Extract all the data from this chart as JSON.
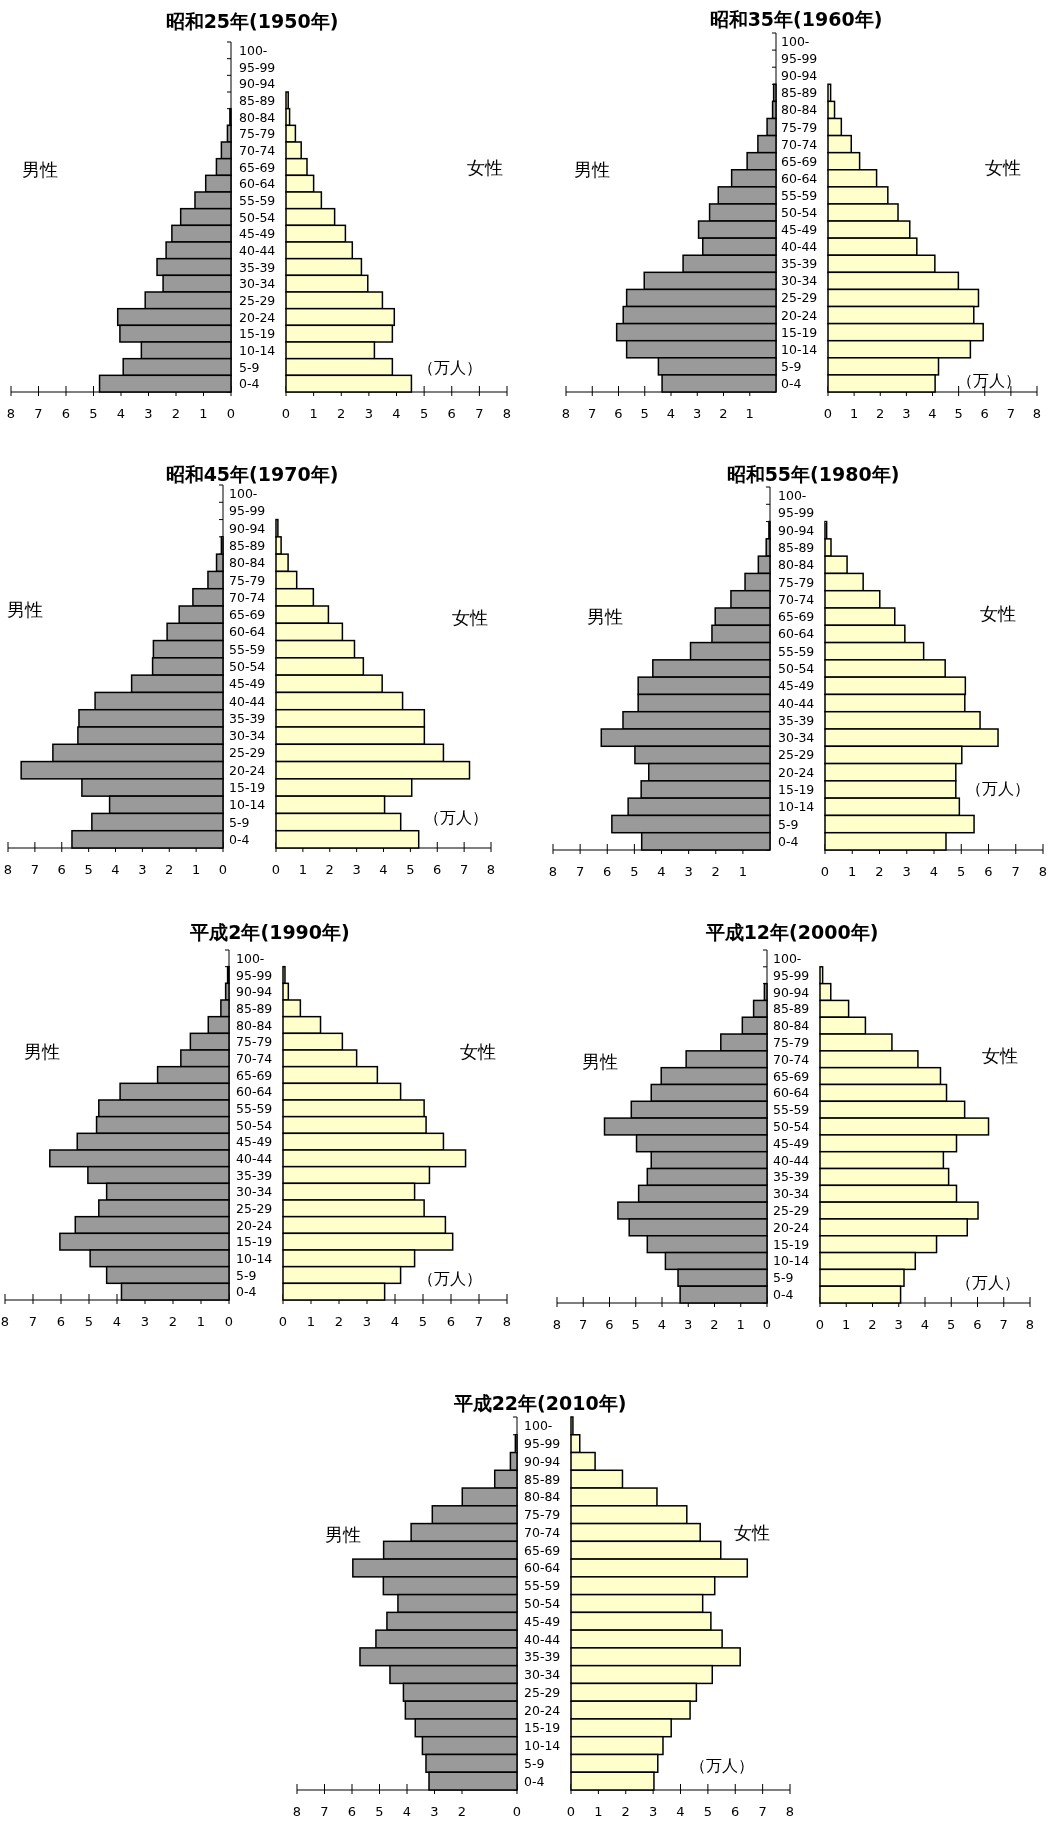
{
  "chart_data": [
    {
      "type": "bar",
      "orientation": "horizontal",
      "title": "昭和25年(1950年)",
      "tick_labels": "x",
      "categories": [
        null,
        null,
        null,
        null,
        null,
        null,
        null,
        null,
        null,
        null,
        null,
        null,
        null,
        null,
        null,
        null,
        null,
        null,
        null,
        null,
        null
      ],
      "xlim": [
        8,
        0
      ],
      "xticks": [
        8,
        7,
        6,
        5,
        4,
        3,
        2,
        1,
        0
      ],
      "series": [
        {
          "name": "男性",
          "color": "#9a9a9a",
          "values": [
            null,
            null,
            null,
            null,
            0.04,
            0.13,
            0.35,
            0.53,
            0.92,
            1.31,
            1.83,
            2.15,
            2.36,
            2.69,
            2.47,
            3.12,
            4.12,
            4.04,
            3.26,
            3.92,
            4.78
          ]
        }
      ]
    },
    {
      "type": "bar",
      "orientation": "horizontal",
      "annotations": [
        "（万人）"
      ],
      "categories": [
        "100-",
        "95-99",
        "90-94",
        "85-89",
        "80-84",
        "75-79",
        "70-74",
        "65-69",
        "60-64",
        "55-59",
        "50-54",
        "45-49",
        "40-44",
        "35-39",
        "30-34",
        "25-29",
        "20-24",
        "15-19",
        "10-14",
        "5-9",
        "0-4"
      ],
      "xlim": [
        0,
        8
      ],
      "xticks": [
        0,
        1,
        2,
        3,
        4,
        5,
        6,
        7,
        8
      ],
      "series": [
        {
          "name": "女性",
          "color": "#ffffcc",
          "values": [
            null,
            null,
            null,
            0.08,
            0.13,
            0.34,
            0.55,
            0.76,
            1.0,
            1.28,
            1.76,
            2.15,
            2.4,
            2.73,
            2.96,
            3.49,
            3.92,
            3.85,
            3.2,
            3.85,
            4.54
          ]
        }
      ]
    },
    {
      "type": "bar",
      "orientation": "horizontal",
      "title": "昭和35年(1960年)",
      "tick_labels": "x",
      "categories": [
        null,
        null,
        null,
        null,
        null,
        null,
        null,
        null,
        null,
        null,
        null,
        null,
        null,
        null,
        null,
        null,
        null,
        null,
        null,
        null,
        null
      ],
      "xlim": [
        8,
        0
      ],
      "xticks": [
        8,
        7,
        6,
        5,
        4,
        3,
        2,
        1
      ],
      "series": [
        {
          "name": "男性",
          "color": "#9a9a9a",
          "values": [
            null,
            null,
            null,
            0.09,
            0.13,
            0.34,
            0.69,
            1.1,
            1.69,
            2.2,
            2.53,
            2.95,
            2.79,
            3.54,
            5.02,
            5.69,
            5.82,
            6.07,
            5.69,
            4.48,
            4.34
          ]
        }
      ]
    },
    {
      "type": "bar",
      "orientation": "horizontal",
      "annotations": [
        "（万人）"
      ],
      "categories": [
        "100-",
        "95-99",
        "90-94",
        "85-89",
        "80-84",
        "75-79",
        "70-74",
        "65-69",
        "60-64",
        "55-59",
        "50-54",
        "45-49",
        "40-44",
        "35-39",
        "30-34",
        "25-29",
        "20-24",
        "15-19",
        "10-14",
        "5-9",
        "0-4"
      ],
      "xlim": [
        0,
        8
      ],
      "xticks": [
        0,
        1,
        2,
        3,
        4,
        5,
        6,
        7,
        8
      ],
      "series": [
        {
          "name": "女性",
          "color": "#ffffcc",
          "values": [
            null,
            null,
            null,
            0.1,
            0.25,
            0.51,
            0.89,
            1.21,
            1.86,
            2.29,
            2.68,
            3.13,
            3.4,
            4.09,
            4.99,
            5.76,
            5.58,
            5.94,
            5.45,
            4.23,
            4.1
          ]
        }
      ]
    },
    {
      "type": "bar",
      "orientation": "horizontal",
      "title": "昭和45年(1970年)",
      "tick_labels": "x",
      "categories": [
        null,
        null,
        null,
        null,
        null,
        null,
        null,
        null,
        null,
        null,
        null,
        null,
        null,
        null,
        null,
        null,
        null,
        null,
        null,
        null,
        null
      ],
      "xlim": [
        8,
        0
      ],
      "xticks": [
        8,
        7,
        6,
        5,
        4,
        3,
        2,
        1,
        0
      ],
      "series": [
        {
          "name": "男性",
          "color": "#9a9a9a",
          "values": [
            null,
            null,
            null,
            0.06,
            0.24,
            0.56,
            1.12,
            1.63,
            2.08,
            2.59,
            2.62,
            3.4,
            4.76,
            5.36,
            5.4,
            6.33,
            7.51,
            5.25,
            4.22,
            4.88,
            5.62
          ]
        }
      ]
    },
    {
      "type": "bar",
      "orientation": "horizontal",
      "annotations": [
        "（万人）"
      ],
      "categories": [
        "100-",
        "95-99",
        "90-94",
        "85-89",
        "80-84",
        "75-79",
        "70-74",
        "65-69",
        "60-64",
        "55-59",
        "50-54",
        "45-49",
        "40-44",
        "35-39",
        "30-34",
        "25-29",
        "20-24",
        "15-19",
        "10-14",
        "5-9",
        "0-4"
      ],
      "xlim": [
        0,
        8
      ],
      "xticks": [
        0,
        1,
        2,
        3,
        4,
        5,
        6,
        7,
        8
      ],
      "series": [
        {
          "name": "女性",
          "color": "#ffffcc",
          "values": [
            null,
            null,
            0.07,
            0.19,
            0.45,
            0.77,
            1.39,
            1.95,
            2.47,
            2.92,
            3.25,
            3.95,
            4.71,
            5.52,
            5.52,
            6.23,
            7.2,
            5.05,
            4.04,
            4.64,
            5.31
          ]
        }
      ]
    },
    {
      "type": "bar",
      "orientation": "horizontal",
      "title": "昭和55年(1980年)",
      "tick_labels": "x",
      "categories": [
        null,
        null,
        null,
        null,
        null,
        null,
        null,
        null,
        null,
        null,
        null,
        null,
        null,
        null,
        null,
        null,
        null,
        null,
        null,
        null,
        null
      ],
      "xlim": [
        8,
        0
      ],
      "xticks": [
        8,
        7,
        6,
        5,
        4,
        3,
        2,
        1
      ],
      "series": [
        {
          "name": "男性",
          "color": "#9a9a9a",
          "values": [
            null,
            null,
            0.04,
            0.14,
            0.43,
            0.92,
            1.44,
            2.02,
            2.14,
            2.93,
            4.32,
            4.86,
            4.86,
            5.42,
            6.22,
            4.98,
            4.47,
            4.75,
            5.23,
            5.83,
            4.73
          ]
        }
      ]
    },
    {
      "type": "bar",
      "orientation": "horizontal",
      "annotations": [
        "（万人）"
      ],
      "categories": [
        "100-",
        "95-99",
        "90-94",
        "85-89",
        "80-84",
        "75-79",
        "70-74",
        "65-69",
        "60-64",
        "55-59",
        "50-54",
        "45-49",
        "40-44",
        "35-39",
        "30-34",
        "25-29",
        "20-24",
        "15-19",
        "10-14",
        "5-9",
        "0-4"
      ],
      "xlim": [
        0,
        8
      ],
      "xticks": [
        0,
        1,
        2,
        3,
        4,
        5,
        6,
        7,
        8
      ],
      "series": [
        {
          "name": "女性",
          "color": "#ffffcc",
          "values": [
            null,
            null,
            0.06,
            0.22,
            0.81,
            1.4,
            2.01,
            2.56,
            2.93,
            3.62,
            4.41,
            5.15,
            5.13,
            5.69,
            6.35,
            5.02,
            4.8,
            4.8,
            4.93,
            5.47,
            4.44
          ]
        }
      ]
    },
    {
      "type": "bar",
      "orientation": "horizontal",
      "title": "平成2年(1990年)",
      "tick_labels": "x",
      "categories": [
        null,
        null,
        null,
        null,
        null,
        null,
        null,
        null,
        null,
        null,
        null,
        null,
        null,
        null,
        null,
        null,
        null,
        null,
        null,
        null,
        null
      ],
      "xlim": [
        8,
        0
      ],
      "xticks": [
        8,
        7,
        6,
        5,
        4,
        3,
        2,
        1,
        0
      ],
      "series": [
        {
          "name": "男性",
          "color": "#9a9a9a",
          "values": [
            null,
            0.05,
            0.12,
            0.29,
            0.74,
            1.38,
            1.72,
            2.55,
            3.89,
            4.65,
            4.73,
            5.42,
            6.4,
            5.04,
            4.37,
            4.65,
            5.49,
            6.04,
            4.96,
            4.37,
            3.84
          ]
        }
      ]
    },
    {
      "type": "bar",
      "orientation": "horizontal",
      "annotations": [
        "（万人）"
      ],
      "categories": [
        "100-",
        "95-99",
        "90-94",
        "85-89",
        "80-84",
        "75-79",
        "70-74",
        "65-69",
        "60-64",
        "55-59",
        "50-54",
        "45-49",
        "40-44",
        "35-39",
        "30-34",
        "25-29",
        "20-24",
        "15-19",
        "10-14",
        "5-9",
        "0-4"
      ],
      "xlim": [
        0,
        8
      ],
      "xticks": [
        0,
        1,
        2,
        3,
        4,
        5,
        6,
        7,
        8
      ],
      "series": [
        {
          "name": "女性",
          "color": "#ffffcc",
          "values": [
            null,
            0.07,
            0.19,
            0.62,
            1.34,
            2.12,
            2.63,
            3.37,
            4.2,
            5.04,
            5.11,
            5.73,
            6.52,
            5.23,
            4.7,
            5.04,
            5.8,
            6.06,
            4.7,
            4.2,
            3.63
          ]
        }
      ]
    },
    {
      "type": "bar",
      "orientation": "horizontal",
      "title": "平成12年(2000年)",
      "tick_labels": "x",
      "categories": [
        null,
        null,
        null,
        null,
        null,
        null,
        null,
        null,
        null,
        null,
        null,
        null,
        null,
        null,
        null,
        null,
        null,
        null,
        null,
        null,
        null
      ],
      "xlim": [
        8,
        0
      ],
      "xticks": [
        8,
        7,
        6,
        5,
        4,
        3,
        2,
        1,
        0
      ],
      "series": [
        {
          "name": "男性",
          "color": "#9a9a9a",
          "values": [
            null,
            null,
            0.1,
            0.51,
            0.94,
            1.76,
            3.08,
            4.03,
            4.41,
            5.17,
            6.19,
            4.97,
            4.41,
            4.56,
            4.89,
            5.68,
            5.25,
            4.56,
            3.87,
            3.39,
            3.31
          ]
        }
      ]
    },
    {
      "type": "bar",
      "orientation": "horizontal",
      "annotations": [
        "（万人）"
      ],
      "categories": [
        "100-",
        "95-99",
        "90-94",
        "85-89",
        "80-84",
        "75-79",
        "70-74",
        "65-69",
        "60-64",
        "55-59",
        "50-54",
        "45-49",
        "40-44",
        "35-39",
        "30-34",
        "25-29",
        "20-24",
        "15-19",
        "10-14",
        "5-9",
        "0-4"
      ],
      "xlim": [
        0,
        8
      ],
      "xticks": [
        0,
        1,
        2,
        3,
        4,
        5,
        6,
        7,
        8
      ],
      "series": [
        {
          "name": "女性",
          "color": "#ffffcc",
          "values": [
            null,
            0.1,
            0.41,
            1.09,
            1.73,
            2.74,
            3.73,
            4.59,
            4.82,
            5.51,
            6.42,
            5.2,
            4.7,
            4.9,
            5.2,
            6.02,
            5.61,
            4.44,
            3.63,
            3.2,
            3.07
          ]
        }
      ]
    },
    {
      "type": "bar",
      "orientation": "horizontal",
      "title": "平成22年(2010年)",
      "tick_labels": "x",
      "categories": [
        null,
        null,
        null,
        null,
        null,
        null,
        null,
        null,
        null,
        null,
        null,
        null,
        null,
        null,
        null,
        null,
        null,
        null,
        null,
        null,
        null
      ],
      "xlim": [
        8,
        0
      ],
      "xticks": [
        8,
        7,
        6,
        5,
        4,
        3,
        2,
        0
      ],
      "series": [
        {
          "name": "男性",
          "color": "#9a9a9a",
          "values": [
            null,
            0.06,
            0.24,
            0.81,
            1.99,
            3.08,
            3.85,
            4.85,
            5.97,
            4.86,
            4.33,
            4.73,
            5.13,
            5.71,
            4.62,
            4.13,
            4.06,
            3.7,
            3.44,
            3.31,
            3.2
          ]
        }
      ]
    },
    {
      "type": "bar",
      "orientation": "horizontal",
      "annotations": [
        "（万人）"
      ],
      "categories": [
        "100-",
        "95-99",
        "90-94",
        "85-89",
        "80-84",
        "75-79",
        "70-74",
        "65-69",
        "60-64",
        "55-59",
        "50-54",
        "45-49",
        "40-44",
        "35-39",
        "30-34",
        "25-29",
        "20-24",
        "15-19",
        "10-14",
        "5-9",
        "0-4"
      ],
      "xlim": [
        0,
        8
      ],
      "xticks": [
        0,
        1,
        2,
        3,
        4,
        5,
        6,
        7,
        8
      ],
      "series": [
        {
          "name": "女性",
          "color": "#ffffcc",
          "values": [
            0.07,
            0.32,
            0.88,
            1.88,
            3.14,
            4.23,
            4.72,
            5.47,
            6.44,
            5.25,
            4.81,
            5.11,
            5.52,
            6.18,
            5.16,
            4.58,
            4.35,
            3.66,
            3.36,
            3.17,
            3.03
          ]
        }
      ]
    }
  ]
}
